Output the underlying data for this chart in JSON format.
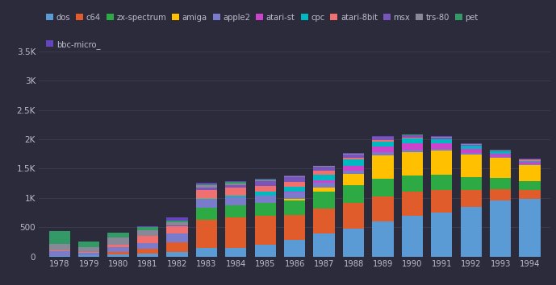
{
  "years": [
    1978,
    1979,
    1980,
    1981,
    1982,
    1983,
    1984,
    1985,
    1986,
    1987,
    1988,
    1989,
    1990,
    1991,
    1992,
    1993,
    1994
  ],
  "platforms": [
    "dos",
    "c64",
    "zx-spectrum",
    "amiga",
    "apple2",
    "atari-st",
    "cpc",
    "atari-8bit",
    "msx",
    "trs-80",
    "pet",
    "bbc-micro_"
  ],
  "colors": {
    "dos": "#5b9bd5",
    "c64": "#e05c2a",
    "zx-spectrum": "#2eaa44",
    "amiga": "#ffc000",
    "apple2": "#7b7bcc",
    "atari-st": "#cc44cc",
    "cpc": "#00b8c0",
    "atari-8bit": "#f07070",
    "msx": "#7755bb",
    "trs-80": "#888899",
    "pet": "#339966",
    "bbc-micro_": "#6644bb"
  },
  "data": {
    "pet": [
      220,
      100,
      80,
      50,
      30,
      20,
      15,
      10,
      8,
      5,
      5,
      5,
      5,
      5,
      5,
      5,
      5
    ],
    "trs-80": [
      110,
      80,
      120,
      100,
      55,
      40,
      30,
      20,
      15,
      10,
      8,
      5,
      5,
      5,
      5,
      5,
      5
    ],
    "apple2": [
      80,
      50,
      75,
      100,
      150,
      140,
      130,
      120,
      100,
      80,
      60,
      45,
      35,
      25,
      20,
      15,
      10
    ],
    "atari-8bit": [
      5,
      5,
      50,
      120,
      130,
      150,
      130,
      100,
      80,
      60,
      35,
      20,
      12,
      8,
      6,
      5,
      5
    ],
    "bbc-micro_": [
      0,
      0,
      0,
      10,
      50,
      30,
      20,
      15,
      10,
      8,
      8,
      6,
      5,
      5,
      5,
      5,
      5
    ],
    "msx": [
      0,
      0,
      0,
      0,
      10,
      30,
      50,
      80,
      80,
      70,
      60,
      50,
      40,
      30,
      18,
      12,
      8
    ],
    "cpc": [
      0,
      0,
      0,
      0,
      0,
      20,
      30,
      60,
      80,
      100,
      100,
      90,
      80,
      60,
      45,
      35,
      25
    ],
    "atari-st": [
      0,
      0,
      0,
      0,
      0,
      0,
      0,
      5,
      20,
      40,
      80,
      100,
      120,
      100,
      80,
      60,
      40
    ],
    "zx-spectrum": [
      0,
      0,
      0,
      0,
      0,
      200,
      210,
      220,
      250,
      280,
      300,
      310,
      280,
      260,
      230,
      190,
      150
    ],
    "amiga": [
      0,
      0,
      0,
      0,
      0,
      0,
      0,
      0,
      30,
      80,
      200,
      400,
      400,
      420,
      380,
      340,
      280
    ],
    "c64": [
      0,
      0,
      50,
      80,
      160,
      480,
      520,
      500,
      430,
      430,
      430,
      420,
      400,
      380,
      280,
      200,
      150
    ],
    "dos": [
      15,
      20,
      30,
      50,
      80,
      150,
      150,
      200,
      280,
      390,
      480,
      600,
      700,
      750,
      850,
      950,
      980
    ]
  },
  "background_color": "#2b2b3b",
  "text_color": "#bbbbcc",
  "grid_color": "#3d3d50",
  "ylim": [
    0,
    3500
  ],
  "yticks": [
    0,
    500,
    1000,
    1500,
    2000,
    2500,
    3000,
    3500
  ],
  "ytick_labels": [
    "0",
    "500",
    "1K",
    "1.5K",
    "2K",
    "2.5K",
    "3K",
    "3.5K"
  ],
  "legend_row1": [
    "dos",
    "c64",
    "zx-spectrum",
    "amiga",
    "apple2",
    "atari-st",
    "cpc",
    "atari-8bit",
    "msx",
    "trs-80",
    "pet"
  ],
  "legend_row2": [
    "bbc-micro_"
  ]
}
